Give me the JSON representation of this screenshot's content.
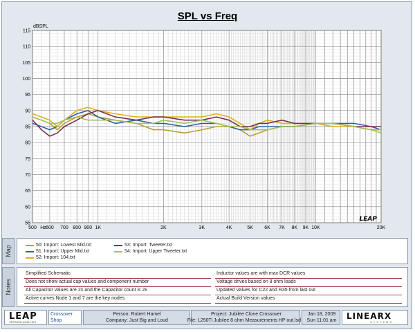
{
  "chart_data": {
    "type": "line",
    "title": "SPL vs Freq",
    "ylabel": "dBSPL",
    "xscale": "log",
    "xlim": [
      500,
      20000
    ],
    "ylim": [
      55,
      115
    ],
    "yticks": [
      115,
      110,
      105,
      100,
      95,
      90,
      85,
      80,
      75,
      70,
      65,
      60,
      55
    ],
    "xtick_labels": [
      {
        "f": 500,
        "label": "500"
      },
      {
        "f": 560,
        "label": "Hz"
      },
      {
        "f": 600,
        "label": "600"
      },
      {
        "f": 700,
        "label": "700"
      },
      {
        "f": 800,
        "label": "800"
      },
      {
        "f": 900,
        "label": "900"
      },
      {
        "f": 1000,
        "label": "1K"
      },
      {
        "f": 2000,
        "label": "2K"
      },
      {
        "f": 3000,
        "label": "3K"
      },
      {
        "f": 4000,
        "label": "4K"
      },
      {
        "f": 5000,
        "label": "5K"
      },
      {
        "f": 6000,
        "label": "6K"
      },
      {
        "f": 7000,
        "label": "7K"
      },
      {
        "f": 8000,
        "label": "8K"
      },
      {
        "f": 9000,
        "label": "9K"
      },
      {
        "f": 10000,
        "label": "10K"
      },
      {
        "f": 20000,
        "label": "20K"
      }
    ],
    "watermark": "LEAP",
    "grid": true,
    "series": [
      {
        "name": "50: Import: Lowest Mid.txt",
        "color": "#b8a030",
        "x": [
          500,
          550,
          600,
          650,
          700,
          800,
          900,
          1000,
          1200,
          1500,
          1800,
          2000,
          2500,
          3000,
          3500,
          4000,
          4500,
          5000,
          5500,
          6000,
          7000,
          8000,
          10000,
          12000,
          15000,
          18000,
          20000
        ],
        "y": [
          88,
          87,
          86,
          84,
          86,
          88,
          89,
          88,
          87,
          86,
          84,
          84,
          83,
          84,
          85,
          85,
          84,
          82,
          83,
          84,
          85,
          85,
          86,
          86,
          85,
          84,
          84
        ]
      },
      {
        "name": "51: Import: Upper Mid.txt",
        "color": "#3060a0",
        "x": [
          500,
          550,
          600,
          650,
          700,
          800,
          900,
          1000,
          1200,
          1500,
          1800,
          2000,
          2500,
          3000,
          3500,
          4000,
          4500,
          5000,
          5500,
          6000,
          7000,
          8000,
          10000,
          12000,
          15000,
          18000,
          20000
        ],
        "y": [
          86,
          85,
          84,
          85,
          87,
          89,
          90,
          88,
          86,
          87,
          86,
          86,
          85,
          86,
          86,
          85,
          84,
          84,
          85,
          85,
          85,
          85,
          86,
          86,
          86,
          85,
          84
        ]
      },
      {
        "name": "52: Import: 104.txt",
        "color": "#e0b020",
        "x": [
          500,
          550,
          600,
          650,
          700,
          800,
          900,
          1000,
          1200,
          1500,
          1800,
          2000,
          2500,
          3000,
          3500,
          4000,
          4500,
          5000,
          5500,
          6000,
          7000,
          8000,
          10000,
          12000,
          15000,
          18000,
          20000
        ],
        "y": [
          89,
          88,
          87,
          85,
          87,
          90,
          91,
          90,
          89,
          88,
          88,
          88,
          88,
          88,
          89,
          88,
          86,
          84,
          86,
          87,
          86,
          86,
          86,
          85,
          85,
          84,
          84
        ]
      },
      {
        "name": "53: Import: Tweeter.txt",
        "color": "#7a3050",
        "x": [
          500,
          550,
          600,
          650,
          700,
          800,
          900,
          1000,
          1200,
          1500,
          1800,
          2000,
          2500,
          3000,
          3500,
          4000,
          4500,
          5000,
          5500,
          6000,
          7000,
          8000,
          10000,
          12000,
          15000,
          18000,
          20000
        ],
        "y": [
          87,
          84,
          82,
          83,
          85,
          87,
          89,
          90,
          88,
          87,
          88,
          88,
          87,
          87,
          88,
          87,
          85,
          85,
          86,
          86,
          87,
          86,
          86,
          86,
          85,
          85,
          85
        ]
      },
      {
        "name": "54: Import: Upper Tweeter.txt",
        "color": "#a0c060",
        "x": [
          500,
          550,
          600,
          650,
          700,
          800,
          900,
          1000,
          1200,
          1500,
          1800,
          2000,
          2500,
          3000,
          3500,
          4000,
          4500,
          5000,
          5500,
          6000,
          7000,
          8000,
          10000,
          12000,
          15000,
          18000,
          20000
        ],
        "y": [
          88,
          87,
          86,
          86,
          87,
          88,
          87,
          87,
          87,
          86,
          86,
          87,
          86,
          87,
          86,
          85,
          85,
          84,
          84,
          84,
          85,
          85,
          86,
          86,
          85,
          84,
          83
        ]
      }
    ]
  },
  "tabs": {
    "map": "Map",
    "notes": "Notes"
  },
  "legend": [
    {
      "label": "50: Import: Lowest Mid.txt",
      "color": "#b8a030"
    },
    {
      "label": "51: Import: Upper Mid.txt",
      "color": "#3060a0"
    },
    {
      "label": "52: Import: 104.txt",
      "color": "#e0b020"
    },
    {
      "label": "53: Import: Tweeter.txt",
      "color": "#7a3050"
    },
    {
      "label": "54: Import: Upper Tweeter.txt",
      "color": "#a0c060"
    }
  ],
  "notes": {
    "left": [
      "Simplified Schematic",
      "Does not show actual cap values and component number",
      "All Capacitor values are 2x and the Capacitor count is 2x",
      "Active curves Node 1 and 7 are the key nodes"
    ],
    "right": [
      "Inductor values are with max DCR values",
      "Voltage drives based on 8 ohm loads",
      "Updated Values for C22 and R35 from last out",
      "Actual Build Version values"
    ]
  },
  "footer": {
    "logo": "LEAP",
    "logo_sub": "SPEAKER ANALYSIS",
    "app_line1": "Crossover",
    "app_line2": "Shop",
    "person": "Person: Robert Hamel",
    "company": "Company: Just Big and Loud",
    "project": "Project: Jubilee Clone Crossover",
    "file": "File: L250Ti Jubilee 8 ohm Measurements HP out.lsd",
    "date": "Jan 18, 2009",
    "time": "Sun 11:01 am",
    "brand": "LINEARX",
    "brand_sub": "SYSTEMS"
  }
}
